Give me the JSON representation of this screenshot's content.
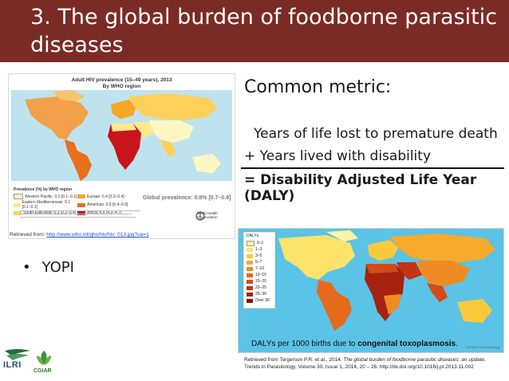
{
  "header": {
    "title": "3. The global burden of foodborne parasitic diseases"
  },
  "map_hiv": {
    "title_line1": "Adult HIV prevalence (15–49 years), 2013",
    "title_line2": "By WHO region",
    "legend_heading": "Prevalence (%) by WHO region",
    "legend_items": [
      {
        "label": "Western Pacific: 0.1 [0.1–0.1]",
        "color": "#fff7c2"
      },
      {
        "label": "Eastern Mediterranean: 0.1 [0.1–0.1]",
        "color": "#fde98a"
      },
      {
        "label": "South-East Asia: 0.3 [0.2–0.4]",
        "color": "#fbd15a"
      },
      {
        "label": "Europe: 0.4 [0.3–0.4]",
        "color": "#f6a623"
      },
      {
        "label": "Americas: 0.5 [0.4–0.6]",
        "color": "#e8701b"
      },
      {
        "label": "Africa: 4.5 [4.3–4.7]",
        "color": "#c8141c"
      }
    ],
    "global_label": "Global prevalence: 0.8% [0.7–0.8]",
    "who_label": "World Health Organization",
    "source_prefix": "Retrieved from: ",
    "source_link": "http://www.who.int/gho/hiv/hiv_013.jpg?ua=1"
  },
  "metric": {
    "title": "Common metric:",
    "line1": "Years of life lost to premature death",
    "line2": "+ Years lived with disability",
    "line3": "= Disability Adjusted Life Year (DALY)"
  },
  "bullets": [
    "YOPI"
  ],
  "map_daly": {
    "legend_heading": "DALYs",
    "legend_items": [
      {
        "label": "0–1",
        "color": "#fff4a8"
      },
      {
        "label": "1–3",
        "color": "#fde36a"
      },
      {
        "label": "3–5",
        "color": "#fbc93e"
      },
      {
        "label": "5–7",
        "color": "#f7ab2c"
      },
      {
        "label": "7–10",
        "color": "#f08a22"
      },
      {
        "label": "10–15",
        "color": "#e56a1c"
      },
      {
        "label": "15–20",
        "color": "#d54b18"
      },
      {
        "label": "20–25",
        "color": "#c23414"
      },
      {
        "label": "25–30",
        "color": "#a62210"
      },
      {
        "label": "Over 30",
        "color": "#85140c"
      }
    ],
    "caption_prefix": "DALYs per 1000 births due to ",
    "caption_bold": "congenital toxoplasmosis",
    "caption_suffix": ".",
    "credit": "TRENDS in Parasitology"
  },
  "reference": {
    "prefix": "Retrieved from Torgerson P.R. et al., 2014. ",
    "italic": "The global burden of foodborne parasitic diseases: an update.",
    "line2": "Trends in Parasitology, Volume 30, Issue 1, 2014, 20 – 26. http://dx.doi.org/10.1016/j.pt.2013.11.002"
  },
  "logos": {
    "ilri": "ILRI",
    "cgiar": "CGIAR"
  },
  "colors": {
    "header_bg": "#7a2b25",
    "ocean": "#bfe2ef",
    "ocean2": "#5bc3e6"
  }
}
